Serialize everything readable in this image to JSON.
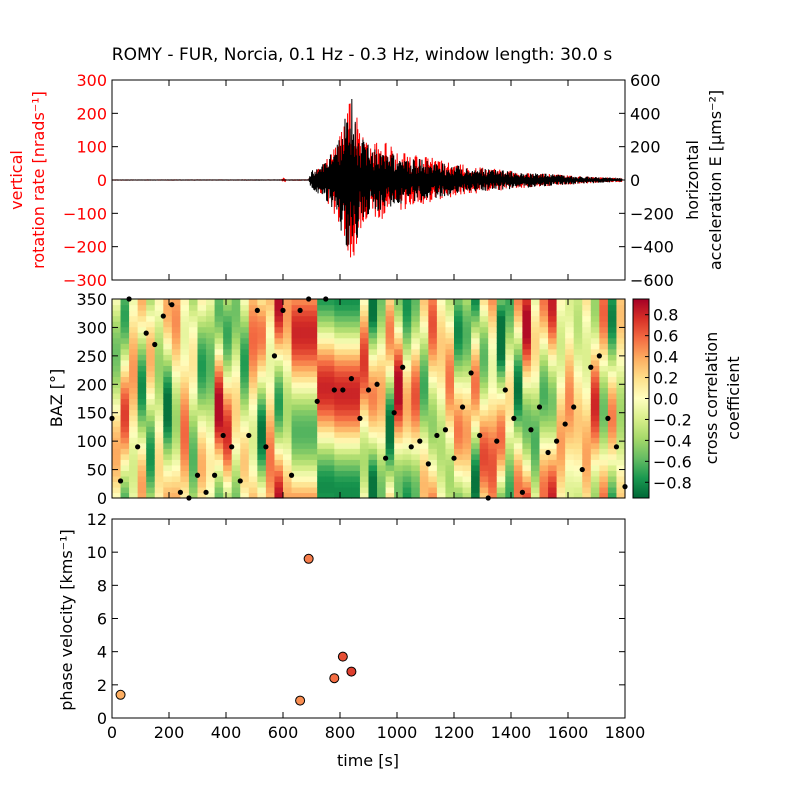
{
  "title": "ROMY - FUR, Norcia, 0.1 Hz - 0.3 Hz, window length: 30.0 s",
  "colors": {
    "rotation": "#ff0000",
    "acceleration": "#000000",
    "axis": "#000000",
    "left_axis_labels": "#ff0000"
  },
  "chart_data": [
    {
      "type": "line",
      "title": "ROMY - FUR, Norcia, 0.1 Hz - 0.3 Hz, window length: 30.0 s",
      "x_range": [
        0,
        1800
      ],
      "ylabel_left_line1": "vertical",
      "ylabel_left_line2": "rotation rate [nrads⁻¹]",
      "ylim_left": [
        -300,
        300
      ],
      "yticks_left": [
        "300",
        "200",
        "100",
        "0",
        "−100",
        "−200",
        "−300"
      ],
      "ylabel_right_line1": "horizontal",
      "ylabel_right_line2": "acceleration E [μms⁻²]",
      "ylim_right": [
        -600,
        600
      ],
      "yticks_right": [
        "600",
        "400",
        "200",
        "0",
        "−200",
        "−400",
        "−600"
      ],
      "series": [
        {
          "color": "#ff0000",
          "envelope": [
            [
              0,
              0.5
            ],
            [
              595,
              0.5
            ],
            [
              602,
              10
            ],
            [
              612,
              0.5
            ],
            [
              690,
              1
            ],
            [
              700,
              18
            ],
            [
              740,
              45
            ],
            [
              790,
              120
            ],
            [
              822,
              190
            ],
            [
              835,
              255
            ],
            [
              850,
              240
            ],
            [
              870,
              150
            ],
            [
              900,
              110
            ],
            [
              960,
              120
            ],
            [
              1000,
              95
            ],
            [
              1100,
              75
            ],
            [
              1200,
              50
            ],
            [
              1300,
              38
            ],
            [
              1400,
              28
            ],
            [
              1500,
              20
            ],
            [
              1600,
              14
            ],
            [
              1700,
              9
            ],
            [
              1780,
              6
            ]
          ]
        },
        {
          "color": "#000000",
          "envelope": [
            [
              0,
              0.5
            ],
            [
              690,
              1
            ],
            [
              700,
              60
            ],
            [
              740,
              110
            ],
            [
              790,
              230
            ],
            [
              820,
              420
            ],
            [
              835,
              520
            ],
            [
              850,
              480
            ],
            [
              870,
              260
            ],
            [
              900,
              210
            ],
            [
              960,
              170
            ],
            [
              1000,
              150
            ],
            [
              1100,
              120
            ],
            [
              1200,
              90
            ],
            [
              1300,
              70
            ],
            [
              1400,
              55
            ],
            [
              1500,
              40
            ],
            [
              1600,
              28
            ],
            [
              1700,
              18
            ],
            [
              1780,
              12
            ]
          ]
        }
      ]
    },
    {
      "type": "heatmap",
      "ylabel": "BAZ [°]",
      "ylim": [
        0,
        350
      ],
      "yticks": [
        "0",
        "50",
        "100",
        "150",
        "200",
        "250",
        "300",
        "350"
      ],
      "x_range": [
        0,
        1800
      ],
      "colorbar_label_line1": "cross correlation",
      "colorbar_label_line2": "coefficient",
      "colorbar_range": [
        -0.95,
        0.95
      ],
      "colorbar_ticks": [
        "0.8",
        "0.6",
        "0.4",
        "0.2",
        "0.0",
        "−0.2",
        "−0.4",
        "−0.6",
        "−0.8"
      ],
      "colormap": [
        "#006837",
        "#1a9850",
        "#66bd63",
        "#a6d96a",
        "#d9ef8b",
        "#ffffbf",
        "#fee08b",
        "#fdae61",
        "#f46d43",
        "#d73027",
        "#a50026"
      ],
      "max_points": [
        [
          0,
          140
        ],
        [
          30,
          30
        ],
        [
          60,
          350
        ],
        [
          90,
          90
        ],
        [
          120,
          290
        ],
        [
          150,
          270
        ],
        [
          180,
          320
        ],
        [
          210,
          340
        ],
        [
          240,
          10
        ],
        [
          270,
          0
        ],
        [
          300,
          40
        ],
        [
          330,
          10
        ],
        [
          360,
          40
        ],
        [
          390,
          110
        ],
        [
          420,
          90
        ],
        [
          450,
          30
        ],
        [
          480,
          110
        ],
        [
          510,
          330
        ],
        [
          540,
          90
        ],
        [
          570,
          250
        ],
        [
          600,
          330
        ],
        [
          630,
          40
        ],
        [
          660,
          330
        ],
        [
          690,
          350
        ],
        [
          720,
          170
        ],
        [
          750,
          350
        ],
        [
          780,
          190
        ],
        [
          810,
          190
        ],
        [
          840,
          210
        ],
        [
          870,
          140
        ],
        [
          900,
          190
        ],
        [
          930,
          200
        ],
        [
          960,
          70
        ],
        [
          990,
          150
        ],
        [
          1020,
          230
        ],
        [
          1050,
          90
        ],
        [
          1080,
          100
        ],
        [
          1110,
          60
        ],
        [
          1140,
          110
        ],
        [
          1170,
          120
        ],
        [
          1200,
          70
        ],
        [
          1230,
          160
        ],
        [
          1260,
          220
        ],
        [
          1290,
          110
        ],
        [
          1320,
          0
        ],
        [
          1350,
          100
        ],
        [
          1380,
          190
        ],
        [
          1410,
          140
        ],
        [
          1440,
          10
        ],
        [
          1470,
          120
        ],
        [
          1500,
          160
        ],
        [
          1530,
          80
        ],
        [
          1560,
          100
        ],
        [
          1590,
          130
        ],
        [
          1620,
          160
        ],
        [
          1650,
          50
        ],
        [
          1680,
          230
        ],
        [
          1710,
          250
        ],
        [
          1740,
          140
        ],
        [
          1770,
          90
        ],
        [
          1800,
          20
        ]
      ]
    },
    {
      "type": "scatter",
      "xlabel": "time [s]",
      "ylabel": "phase velocity [kms⁻¹]",
      "xlim": [
        0,
        1800
      ],
      "ylim": [
        0,
        12
      ],
      "xticks": [
        "0",
        "200",
        "400",
        "600",
        "800",
        "1000",
        "1200",
        "1400",
        "1600",
        "1800"
      ],
      "yticks": [
        "0",
        "2",
        "4",
        "6",
        "8",
        "10",
        "12"
      ],
      "points": [
        [
          30,
          1.4,
          0.4
        ],
        [
          660,
          1.05,
          0.5
        ],
        [
          690,
          9.6,
          0.55
        ],
        [
          780,
          2.4,
          0.6
        ],
        [
          810,
          3.7,
          0.7
        ],
        [
          840,
          2.8,
          0.75
        ]
      ]
    }
  ]
}
